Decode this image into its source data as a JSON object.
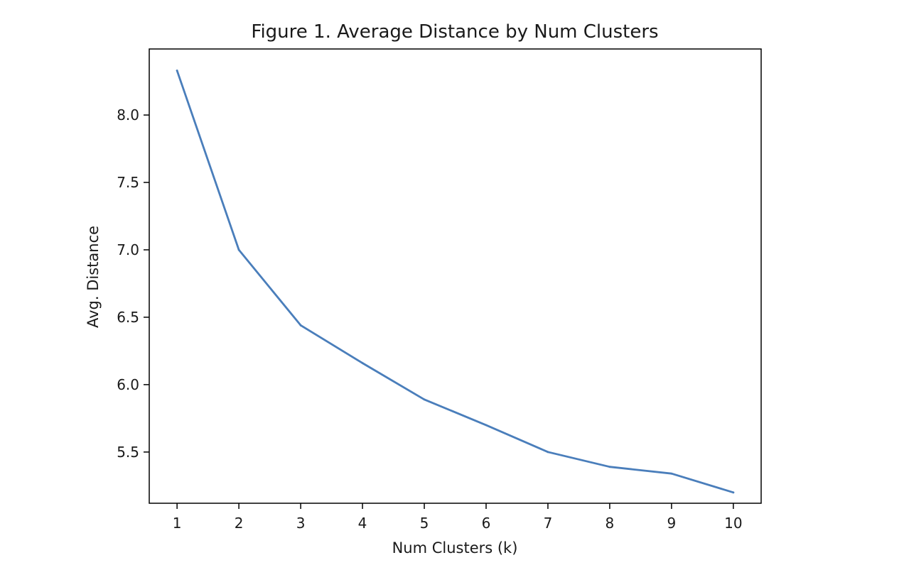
{
  "chart_data": {
    "type": "line",
    "title": "Figure 1. Average Distance by Num Clusters",
    "xlabel": "Num Clusters (k)",
    "ylabel": "Avg. Distance",
    "x": [
      1,
      2,
      3,
      4,
      5,
      6,
      7,
      8,
      9,
      10
    ],
    "x_tick_labels": [
      "1",
      "2",
      "3",
      "4",
      "5",
      "6",
      "7",
      "8",
      "9",
      "10"
    ],
    "y_ticks": [
      5.5,
      6.0,
      6.5,
      7.0,
      7.5,
      8.0
    ],
    "y_tick_labels": [
      "5.5",
      "6.0",
      "6.5",
      "7.0",
      "7.5",
      "8.0"
    ],
    "xlim": [
      0.55,
      10.45
    ],
    "ylim": [
      5.12,
      8.49
    ],
    "grid": false,
    "series": [
      {
        "values": [
          8.33,
          7.0,
          6.44,
          6.16,
          5.89,
          5.7,
          5.5,
          5.39,
          5.34,
          5.2
        ],
        "color": "#4a7ebb"
      }
    ]
  }
}
